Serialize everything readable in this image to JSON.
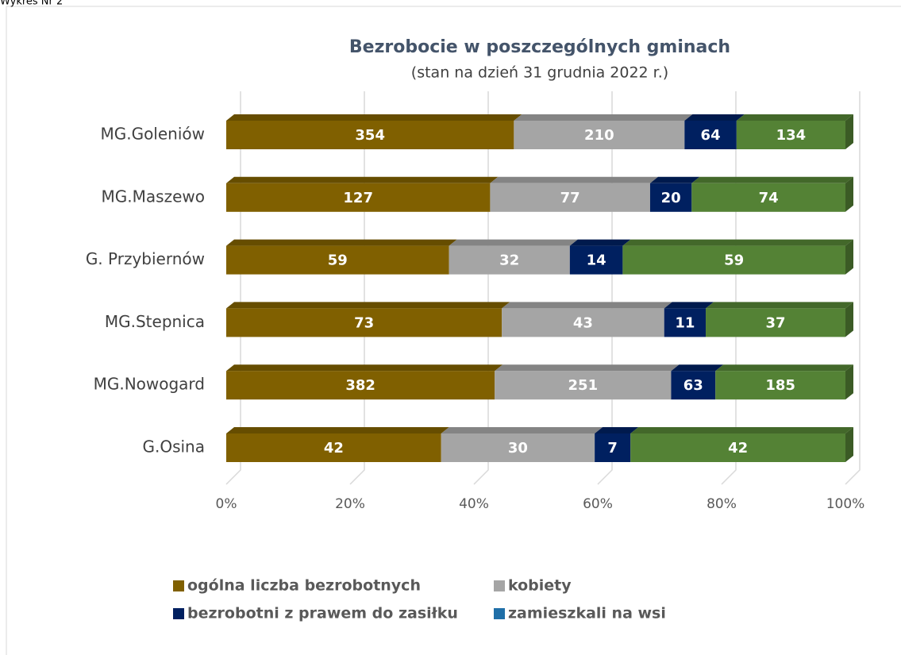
{
  "caption": "Wykres Nr 2",
  "chart_data": {
    "type": "stacked_bar_100",
    "title": "Bezrobocie w poszczególnych gminach",
    "subtitle": "(stan na dzień 31 grudnia 2022 r.)",
    "categories": [
      "MG.Goleniów",
      "MG.Maszewo",
      "G. Przybiernów",
      "MG.Stepnica",
      "MG.Nowogard",
      "G.Osina"
    ],
    "series": [
      {
        "name": "ogólna liczba bezrobotnych",
        "color": "#806000",
        "legend_color": "#806000",
        "values": [
          354,
          127,
          59,
          73,
          382,
          42
        ]
      },
      {
        "name": "kobiety",
        "color": "#a5a5a5",
        "legend_color": "#a5a5a5",
        "values": [
          210,
          77,
          32,
          43,
          251,
          30
        ]
      },
      {
        "name": "bezrobotni z prawem do zasiłku",
        "color": "#002060",
        "legend_color": "#002060",
        "values": [
          64,
          20,
          14,
          11,
          63,
          7
        ]
      },
      {
        "name": "zamieszkali na wsi",
        "color": "#548235",
        "legend_color": "#1f6fa8",
        "values": [
          134,
          74,
          59,
          37,
          185,
          42
        ]
      }
    ],
    "xlim": [
      0,
      100
    ],
    "xticks": [
      {
        "value": 0,
        "label": "0%"
      },
      {
        "value": 20,
        "label": "20%"
      },
      {
        "value": 40,
        "label": "40%"
      },
      {
        "value": 60,
        "label": "60%"
      },
      {
        "value": 80,
        "label": "80%"
      },
      {
        "value": 100,
        "label": "100%"
      }
    ],
    "grid": true,
    "legend": "bottom"
  }
}
